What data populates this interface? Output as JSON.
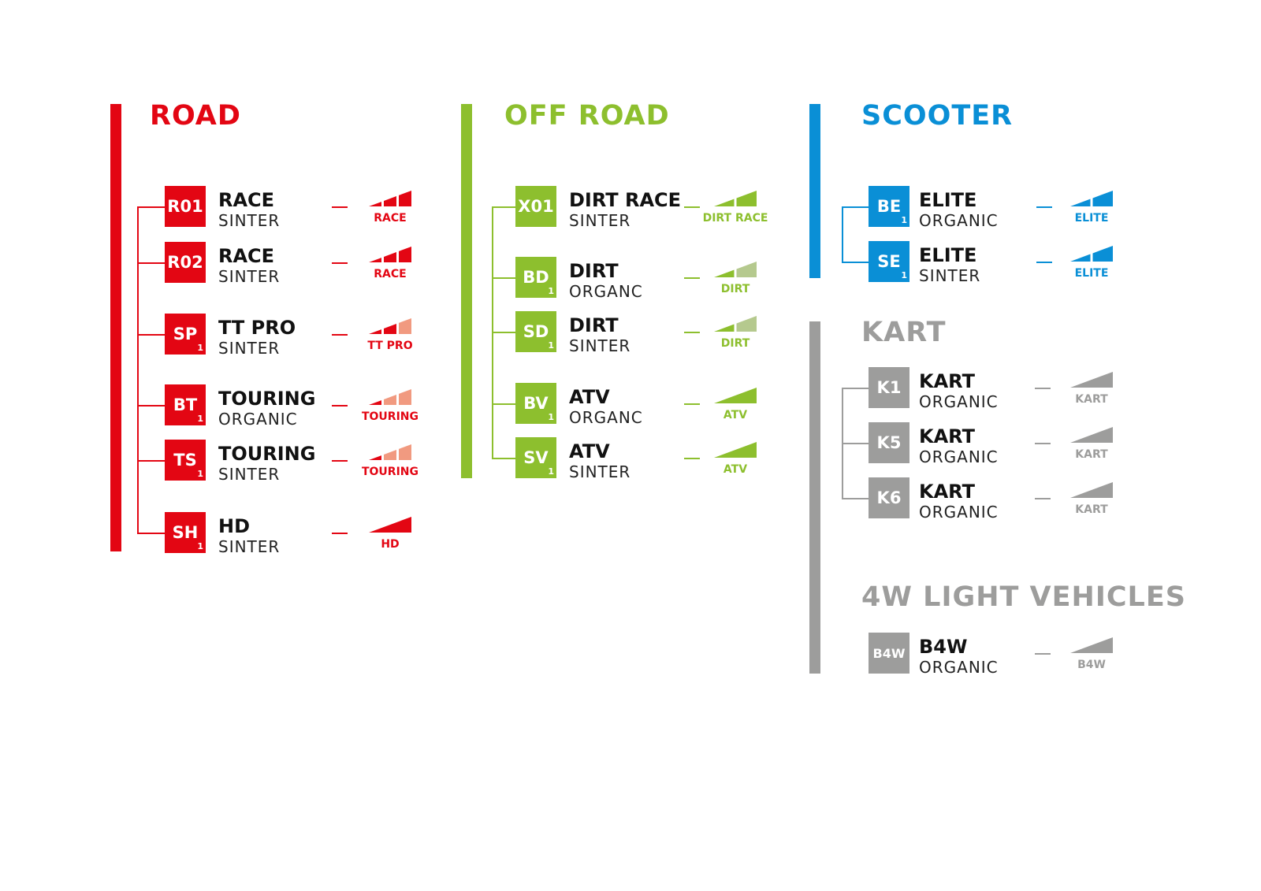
{
  "colors": {
    "road": "#e30613",
    "road_light": "#f19a80",
    "offroad": "#8dbf2e",
    "offroad_light": "#b5c98e",
    "scooter": "#0a8fd6",
    "kart": "#9d9d9c",
    "kart_light": "#cfcfcf"
  },
  "sections": [
    {
      "id": "road",
      "title": "ROAD",
      "color": "#e30613",
      "light": "#f19a80",
      "items": [
        {
          "code": "R01",
          "sub": "",
          "name": "RACE",
          "kind": "SINTER",
          "level_label": "RACE",
          "segments": 3,
          "filled": 3
        },
        {
          "code": "R02",
          "sub": "",
          "name": "RACE",
          "kind": "SINTER",
          "level_label": "RACE",
          "segments": 3,
          "filled": 3
        },
        {
          "code": "SP",
          "sub": "1",
          "name": "TT PRO",
          "kind": "SINTER",
          "level_label": "TT PRO",
          "segments": 3,
          "filled": 2
        },
        {
          "code": "BT",
          "sub": "1",
          "name": "TOURING",
          "kind": "ORGANIC",
          "level_label": "TOURING",
          "segments": 3,
          "filled": 1
        },
        {
          "code": "TS",
          "sub": "1",
          "name": "TOURING",
          "kind": "SINTER",
          "level_label": "TOURING",
          "segments": 3,
          "filled": 1
        },
        {
          "code": "SH",
          "sub": "1",
          "name": "HD",
          "kind": "SINTER",
          "level_label": "HD",
          "segments": 1,
          "filled": 1
        }
      ]
    },
    {
      "id": "offroad",
      "title": "OFF ROAD",
      "color": "#8dbf2e",
      "light": "#b5c98e",
      "items": [
        {
          "code": "X01",
          "sub": "",
          "name": "DIRT RACE",
          "kind": "SINTER",
          "level_label": "DIRT RACE",
          "segments": 2,
          "filled": 2
        },
        {
          "code": "BD",
          "sub": "1",
          "name": "DIRT",
          "kind": "ORGANC",
          "level_label": "DIRT",
          "segments": 2,
          "filled": 1
        },
        {
          "code": "SD",
          "sub": "1",
          "name": "DIRT",
          "kind": "SINTER",
          "level_label": "DIRT",
          "segments": 2,
          "filled": 1
        },
        {
          "code": "BV",
          "sub": "1",
          "name": "ATV",
          "kind": "ORGANC",
          "level_label": "ATV",
          "segments": 1,
          "filled": 1
        },
        {
          "code": "SV",
          "sub": "1",
          "name": "ATV",
          "kind": "SINTER",
          "level_label": "ATV",
          "segments": 1,
          "filled": 1
        }
      ]
    },
    {
      "id": "scooter",
      "title": "SCOOTER",
      "color": "#0a8fd6",
      "light": "#0a8fd6",
      "items": [
        {
          "code": "BE",
          "sub": "1",
          "name": "ELITE",
          "kind": "ORGANIC",
          "level_label": "ELITE",
          "segments": 2,
          "filled": 2
        },
        {
          "code": "SE",
          "sub": "1",
          "name": "ELITE",
          "kind": "SINTER",
          "level_label": "ELITE",
          "segments": 2,
          "filled": 2
        }
      ]
    },
    {
      "id": "kart",
      "title": "KART",
      "color": "#9d9d9c",
      "light": "#9d9d9c",
      "items": [
        {
          "code": "K1",
          "sub": "",
          "name": "KART",
          "kind": "ORGANIC",
          "level_label": "KART",
          "segments": 1,
          "filled": 1
        },
        {
          "code": "K5",
          "sub": "",
          "name": "KART",
          "kind": "ORGANIC",
          "level_label": "KART",
          "segments": 1,
          "filled": 1
        },
        {
          "code": "K6",
          "sub": "",
          "name": "KART",
          "kind": "ORGANIC",
          "level_label": "KART",
          "segments": 1,
          "filled": 1
        }
      ]
    },
    {
      "id": "light4w",
      "title": "4W LIGHT VEHICLES",
      "color": "#9d9d9c",
      "light": "#9d9d9c",
      "items": [
        {
          "code": "B4W",
          "sub": "",
          "name": "B4W",
          "kind": "ORGANIC",
          "level_label": "B4W",
          "segments": 1,
          "filled": 1
        }
      ]
    }
  ]
}
